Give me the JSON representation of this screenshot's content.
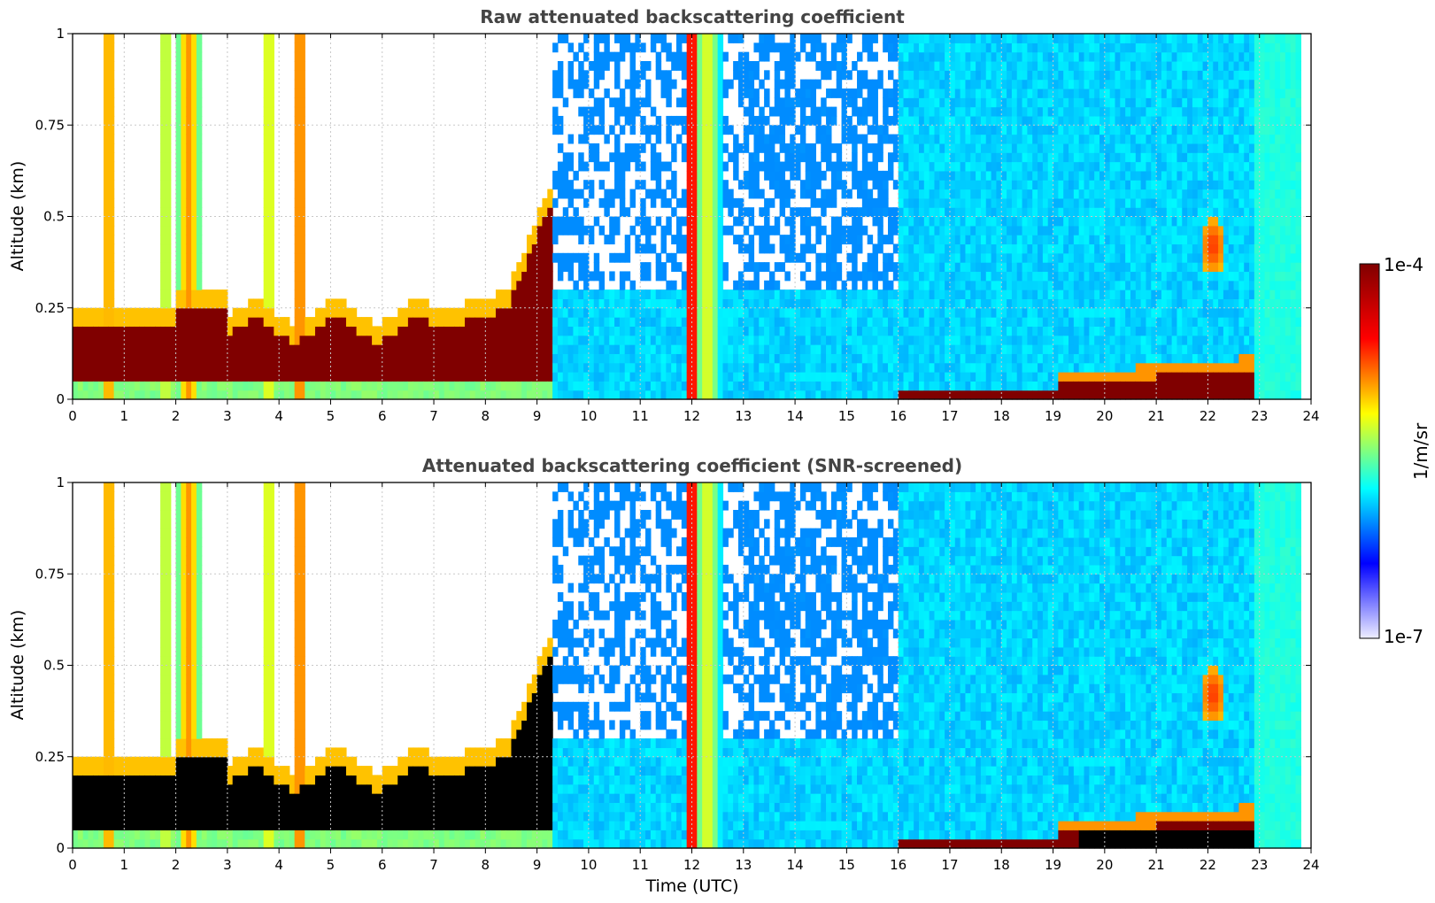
{
  "chart_data": [
    {
      "type": "heatmap",
      "title": "Raw attenuated backscattering coefficient",
      "xlabel": "",
      "ylabel": "Altitude (km)",
      "xlim": [
        0,
        24
      ],
      "ylim": [
        0,
        1
      ],
      "xticks": [
        0,
        1,
        2,
        3,
        4,
        5,
        6,
        7,
        8,
        9,
        10,
        11,
        12,
        13,
        14,
        15,
        16,
        17,
        18,
        19,
        20,
        21,
        22,
        23,
        24
      ],
      "yticks": [
        0,
        0.25,
        0.5,
        0.75,
        1
      ],
      "ytick_labels": [
        "0",
        "0.25",
        "0.5",
        "0.75",
        "1"
      ],
      "grid": true,
      "screened": false
    },
    {
      "type": "heatmap",
      "title": "Attenuated backscattering coefficient (SNR-screened)",
      "xlabel": "Time (UTC)",
      "ylabel": "Altitude (km)",
      "xlim": [
        0,
        24
      ],
      "ylim": [
        0,
        1
      ],
      "xticks": [
        0,
        1,
        2,
        3,
        4,
        5,
        6,
        7,
        8,
        9,
        10,
        11,
        12,
        13,
        14,
        15,
        16,
        17,
        18,
        19,
        20,
        21,
        22,
        23,
        24
      ],
      "yticks": [
        0,
        0.25,
        0.5,
        0.75,
        1
      ],
      "ytick_labels": [
        "0",
        "0.25",
        "0.5",
        "0.75",
        "1"
      ],
      "grid": true,
      "screened": true
    }
  ],
  "colorbar": {
    "max_label": "1e-4",
    "min_label": "1e-7",
    "units_label": "1/m/sr",
    "colormap": "jet",
    "colors": [
      "#eeeeff",
      "#0000ff",
      "#00ffff",
      "#ffff00",
      "#ff0000",
      "#800000"
    ]
  }
}
